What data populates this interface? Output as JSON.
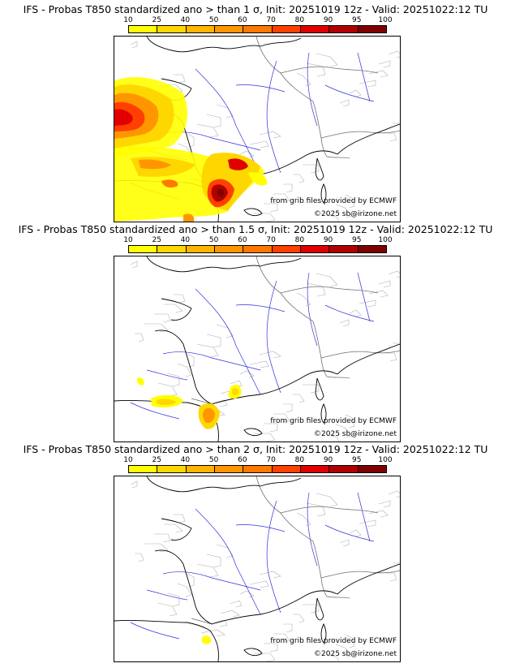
{
  "colorbar": {
    "labels": [
      "10",
      "25",
      "40",
      "50",
      "60",
      "70",
      "80",
      "90",
      "95",
      "100"
    ],
    "colors": [
      "#ffff00",
      "#ffd700",
      "#ffb400",
      "#ff9600",
      "#ff7800",
      "#ff4000",
      "#e00000",
      "#b00000",
      "#800000"
    ]
  },
  "panels": [
    {
      "title": "IFS - Probas T850  standardized ano > than 1 σ, Init: 20251019 12z - Valid: 20251022:12 TU",
      "credit_source": "from grib files provided by ECMWF",
      "credit_copyright": "©2025 sb@irizone.net"
    },
    {
      "title": "IFS - Probas T850  standardized ano > than 1.5 σ, Init: 20251019 12z - Valid: 20251022:12 TU",
      "credit_source": "from grib files provided by ECMWF",
      "credit_copyright": "©2025 sb@irizone.net"
    },
    {
      "title": "IFS - Probas T850  standardized ano > than 2 σ, Init: 20251019 12z - Valid: 20251022:12 TU",
      "credit_source": "from grib files provided by ECMWF",
      "credit_copyright": "©2025 sb@irizone.net"
    }
  ]
}
